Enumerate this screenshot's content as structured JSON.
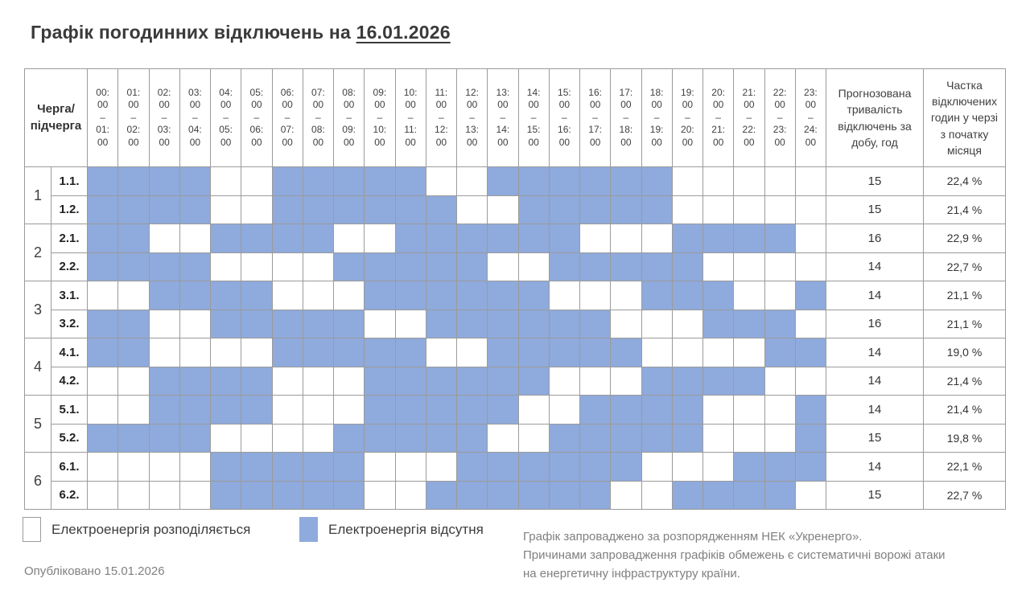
{
  "title": {
    "prefix": "Графік погодинних відключень на ",
    "date": "16.01.2026"
  },
  "colors": {
    "outage_fill": "#8FAADC",
    "grid_line": "#9B9B9B",
    "muted_text": "#808080",
    "title_text": "#3A3A3A"
  },
  "table_headers": {
    "corner_lines": [
      "Черга/",
      "підчерга"
    ],
    "duration": "Прогнозована тривалість відключень за добу, год",
    "share": "Частка відключених годин у черзі з початку місяця"
  },
  "chart_data": {
    "type": "heatmap",
    "title": "Графік погодинних відключень на 16.01.2026",
    "x_categories": [
      {
        "from": "00:00",
        "to": "01:00"
      },
      {
        "from": "01:00",
        "to": "02:00"
      },
      {
        "from": "02:00",
        "to": "03:00"
      },
      {
        "from": "03:00",
        "to": "04:00"
      },
      {
        "from": "04:00",
        "to": "05:00"
      },
      {
        "from": "05:00",
        "to": "06:00"
      },
      {
        "from": "06:00",
        "to": "07:00"
      },
      {
        "from": "07:00",
        "to": "08:00"
      },
      {
        "from": "08:00",
        "to": "09:00"
      },
      {
        "from": "09:00",
        "to": "10:00"
      },
      {
        "from": "10:00",
        "to": "11:00"
      },
      {
        "from": "11:00",
        "to": "12:00"
      },
      {
        "from": "12:00",
        "to": "13:00"
      },
      {
        "from": "13:00",
        "to": "14:00"
      },
      {
        "from": "14:00",
        "to": "15:00"
      },
      {
        "from": "15:00",
        "to": "16:00"
      },
      {
        "from": "16:00",
        "to": "17:00"
      },
      {
        "from": "17:00",
        "to": "18:00"
      },
      {
        "from": "18:00",
        "to": "19:00"
      },
      {
        "from": "19:00",
        "to": "20:00"
      },
      {
        "from": "20:00",
        "to": "21:00"
      },
      {
        "from": "21:00",
        "to": "22:00"
      },
      {
        "from": "22:00",
        "to": "23:00"
      },
      {
        "from": "23:00",
        "to": "24:00"
      }
    ],
    "value_legend": [
      {
        "value": 0,
        "label": "Електроенергія розподіляється",
        "color": "#FFFFFF"
      },
      {
        "value": 1,
        "label": "Електроенергія відсутня",
        "color": "#8FAADC"
      }
    ],
    "queues": [
      {
        "number": "1",
        "subqueues": [
          {
            "label": "1.1.",
            "values": [
              1,
              1,
              1,
              1,
              0,
              0,
              1,
              1,
              1,
              1,
              1,
              0,
              0,
              1,
              1,
              1,
              1,
              1,
              1,
              0,
              0,
              0,
              0,
              0
            ],
            "duration_hours": "15",
            "share_since_month_start": "22,4 %"
          },
          {
            "label": "1.2.",
            "values": [
              1,
              1,
              1,
              1,
              0,
              0,
              1,
              1,
              1,
              1,
              1,
              1,
              0,
              0,
              1,
              1,
              1,
              1,
              1,
              0,
              0,
              0,
              0,
              0
            ],
            "duration_hours": "15",
            "share_since_month_start": "21,4 %"
          }
        ]
      },
      {
        "number": "2",
        "subqueues": [
          {
            "label": "2.1.",
            "values": [
              1,
              1,
              0,
              0,
              1,
              1,
              1,
              1,
              0,
              0,
              1,
              1,
              1,
              1,
              1,
              1,
              0,
              0,
              0,
              1,
              1,
              1,
              1,
              0
            ],
            "duration_hours": "16",
            "share_since_month_start": "22,9 %"
          },
          {
            "label": "2.2.",
            "values": [
              1,
              1,
              1,
              1,
              0,
              0,
              0,
              0,
              1,
              1,
              1,
              1,
              1,
              0,
              0,
              1,
              1,
              1,
              1,
              1,
              0,
              0,
              0,
              0
            ],
            "duration_hours": "14",
            "share_since_month_start": "22,7 %"
          }
        ]
      },
      {
        "number": "3",
        "subqueues": [
          {
            "label": "3.1.",
            "values": [
              0,
              0,
              1,
              1,
              1,
              1,
              0,
              0,
              0,
              1,
              1,
              1,
              1,
              1,
              1,
              0,
              0,
              0,
              1,
              1,
              1,
              0,
              0,
              1
            ],
            "duration_hours": "14",
            "share_since_month_start": "21,1 %"
          },
          {
            "label": "3.2.",
            "values": [
              1,
              1,
              0,
              0,
              1,
              1,
              1,
              1,
              1,
              0,
              0,
              1,
              1,
              1,
              1,
              1,
              1,
              0,
              0,
              0,
              1,
              1,
              1,
              0
            ],
            "duration_hours": "16",
            "share_since_month_start": "21,1 %"
          }
        ]
      },
      {
        "number": "4",
        "subqueues": [
          {
            "label": "4.1.",
            "values": [
              1,
              1,
              0,
              0,
              0,
              0,
              1,
              1,
              1,
              1,
              1,
              0,
              0,
              1,
              1,
              1,
              1,
              1,
              0,
              0,
              0,
              0,
              1,
              1
            ],
            "duration_hours": "14",
            "share_since_month_start": "19,0 %"
          },
          {
            "label": "4.2.",
            "values": [
              0,
              0,
              1,
              1,
              1,
              1,
              0,
              0,
              0,
              1,
              1,
              1,
              1,
              1,
              1,
              0,
              0,
              0,
              1,
              1,
              1,
              1,
              0,
              0
            ],
            "duration_hours": "14",
            "share_since_month_start": "21,4 %"
          }
        ]
      },
      {
        "number": "5",
        "subqueues": [
          {
            "label": "5.1.",
            "values": [
              0,
              0,
              1,
              1,
              1,
              1,
              0,
              0,
              0,
              1,
              1,
              1,
              1,
              1,
              0,
              0,
              1,
              1,
              1,
              1,
              0,
              0,
              0,
              1
            ],
            "duration_hours": "14",
            "share_since_month_start": "21,4 %"
          },
          {
            "label": "5.2.",
            "values": [
              1,
              1,
              1,
              1,
              0,
              0,
              0,
              0,
              1,
              1,
              1,
              1,
              1,
              0,
              0,
              1,
              1,
              1,
              1,
              1,
              0,
              0,
              0,
              1
            ],
            "duration_hours": "15",
            "share_since_month_start": "19,8 %"
          }
        ]
      },
      {
        "number": "6",
        "subqueues": [
          {
            "label": "6.1.",
            "values": [
              0,
              0,
              0,
              0,
              1,
              1,
              1,
              1,
              1,
              0,
              0,
              0,
              1,
              1,
              1,
              1,
              1,
              1,
              0,
              0,
              0,
              1,
              1,
              1
            ],
            "duration_hours": "14",
            "share_since_month_start": "22,1 %"
          },
          {
            "label": "6.2.",
            "values": [
              0,
              0,
              0,
              0,
              1,
              1,
              1,
              1,
              1,
              0,
              0,
              1,
              1,
              1,
              1,
              1,
              1,
              0,
              0,
              1,
              1,
              1,
              1,
              0
            ],
            "duration_hours": "15",
            "share_since_month_start": "22,7 %"
          }
        ]
      }
    ]
  },
  "legend": {
    "power_available": "Електроенергія розподіляється",
    "power_absent": "Електроенергія відсутня"
  },
  "published": "Опубліковано 15.01.2026",
  "note_lines": [
    "Графік запроваджено за розпорядженням НЕК «Укренерго».",
    "Причинами запровадження графіків обмежень є систематичні ворожі атаки",
    "на енергетичну інфраструктуру країни."
  ]
}
